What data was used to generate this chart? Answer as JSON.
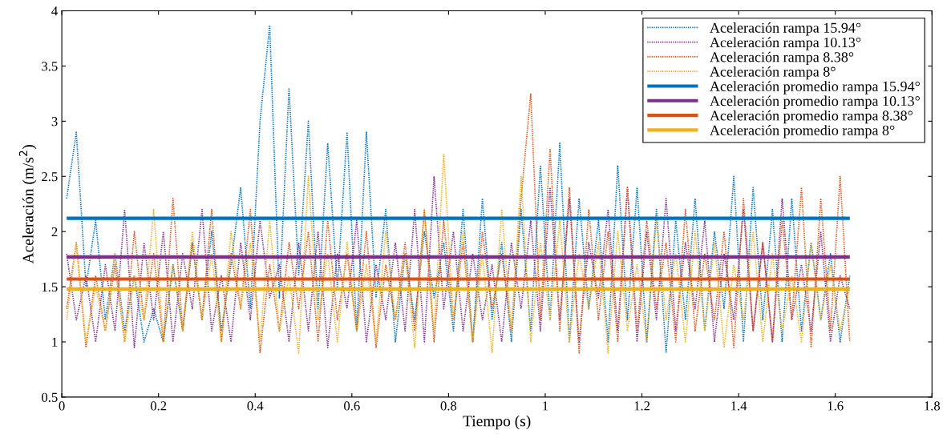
{
  "chart_data": {
    "type": "line",
    "xlabel": "Tiempo (s)",
    "ylabel": "Aceleración (m/s$^{2}$)",
    "x": [
      0.01,
      0.03,
      0.05,
      0.07,
      0.09,
      0.11,
      0.13,
      0.15,
      0.17,
      0.19,
      0.21,
      0.23,
      0.25,
      0.27,
      0.29,
      0.31,
      0.33,
      0.35,
      0.37,
      0.39,
      0.41,
      0.43,
      0.45,
      0.47,
      0.49,
      0.51,
      0.53,
      0.55,
      0.57,
      0.59,
      0.61,
      0.63,
      0.65,
      0.67,
      0.69,
      0.71,
      0.73,
      0.75,
      0.77,
      0.79,
      0.81,
      0.83,
      0.85,
      0.87,
      0.89,
      0.91,
      0.93,
      0.95,
      0.97,
      0.99,
      1.01,
      1.03,
      1.05,
      1.07,
      1.09,
      1.11,
      1.13,
      1.15,
      1.17,
      1.19,
      1.21,
      1.23,
      1.25,
      1.27,
      1.29,
      1.31,
      1.33,
      1.35,
      1.37,
      1.39,
      1.41,
      1.43,
      1.45,
      1.47,
      1.49,
      1.51,
      1.53,
      1.55,
      1.57,
      1.59,
      1.61,
      1.63
    ],
    "xlim": [
      0,
      1.8
    ],
    "xticks": [
      0,
      0.2,
      0.4,
      0.6,
      0.8,
      1,
      1.2,
      1.4,
      1.6,
      1.8
    ],
    "ylim": [
      0.5,
      4
    ],
    "yticks": [
      0.5,
      1,
      1.5,
      2,
      2.5,
      3,
      3.5,
      4
    ],
    "grid": false,
    "legend": "top right",
    "series": [
      {
        "name": "Aceleración rampa 15.94°",
        "color": "#0072bd",
        "line_style": "dotted",
        "values": [
          2.3,
          2.9,
          1.5,
          2.1,
          1.2,
          1.8,
          1.1,
          1.6,
          1.0,
          1.3,
          1.0,
          1.7,
          1.1,
          1.9,
          1.2,
          2.0,
          1.1,
          1.7,
          2.4,
          1.3,
          3.0,
          3.87,
          1.4,
          3.3,
          1.6,
          3.0,
          1.3,
          2.8,
          1.5,
          2.9,
          1.1,
          2.9,
          1.4,
          2.2,
          1.0,
          1.8,
          1.2,
          2.0,
          1.4,
          1.9,
          1.1,
          2.2,
          1.0,
          2.3,
          1.2,
          1.9,
          1.0,
          2.2,
          1.1,
          2.6,
          1.2,
          2.8,
          1.0,
          2.3,
          1.3,
          2.1,
          1.0,
          2.6,
          1.2,
          2.4,
          1.0,
          2.2,
          0.9,
          2.1,
          1.2,
          2.3,
          1.1,
          2.0,
          1.3,
          2.5,
          1.0,
          2.4,
          1.2,
          2.2,
          1.0,
          2.3,
          1.1,
          1.9,
          1.2,
          1.8,
          1.0,
          1.6
        ]
      },
      {
        "name": "Aceleración rampa 10.13°",
        "color": "#7e2f8e",
        "line_style": "dotted",
        "values": [
          1.8,
          1.2,
          1.6,
          1.0,
          1.7,
          1.1,
          2.2,
          0.95,
          1.9,
          1.2,
          2.0,
          1.0,
          1.8,
          1.3,
          2.2,
          1.1,
          1.6,
          1.0,
          1.9,
          1.2,
          2.1,
          1.4,
          1.7,
          1.0,
          1.9,
          1.1,
          2.0,
          0.95,
          1.8,
          1.3,
          2.1,
          1.0,
          1.7,
          1.2,
          1.9,
          1.1,
          2.2,
          1.0,
          2.5,
          1.3,
          2.0,
          1.1,
          1.8,
          1.2,
          1.7,
          1.0,
          1.9,
          1.3,
          2.1,
          1.1,
          2.4,
          1.2,
          2.3,
          1.0,
          1.9,
          1.4,
          2.2,
          1.1,
          2.4,
          1.0,
          2.0,
          1.2,
          2.3,
          1.1,
          1.9,
          1.3,
          2.1,
          1.0,
          1.8,
          1.2,
          2.2,
          1.1,
          1.9,
          1.0,
          2.3,
          1.2,
          1.7,
          1.1,
          2.0,
          1.0,
          1.6,
          1.3
        ]
      },
      {
        "name": "Aceleración rampa 8.38°",
        "color": "#d95319",
        "line_style": "dotted",
        "values": [
          1.3,
          1.9,
          0.95,
          1.6,
          1.1,
          1.7,
          1.0,
          2.0,
          1.2,
          1.8,
          1.0,
          2.3,
          1.1,
          1.9,
          1.2,
          2.2,
          1.0,
          1.8,
          1.3,
          2.2,
          0.9,
          1.7,
          1.1,
          1.9,
          1.3,
          2.0,
          1.0,
          2.1,
          1.2,
          1.8,
          1.1,
          2.0,
          0.95,
          1.7,
          1.2,
          1.9,
          1.1,
          2.2,
          1.0,
          2.1,
          1.2,
          1.9,
          1.0,
          2.0,
          1.3,
          1.8,
          1.1,
          2.3,
          3.25,
          1.2,
          2.75,
          1.1,
          2.4,
          0.9,
          2.2,
          1.2,
          2.0,
          1.0,
          2.4,
          1.1,
          2.1,
          1.3,
          1.9,
          1.0,
          2.2,
          1.1,
          1.8,
          1.2,
          2.0,
          0.95,
          2.3,
          1.1,
          1.9,
          1.0,
          2.1,
          1.2,
          2.4,
          0.95,
          2.3,
          1.1,
          2.5,
          1.0
        ]
      },
      {
        "name": "Aceleración rampa 8°",
        "color": "#edb120",
        "line_style": "dotted",
        "values": [
          1.2,
          1.9,
          1.0,
          1.5,
          1.1,
          1.8,
          1.0,
          1.6,
          1.2,
          2.2,
          1.0,
          1.7,
          1.1,
          2.0,
          1.2,
          1.8,
          1.0,
          2.0,
          1.3,
          1.9,
          1.0,
          2.1,
          1.1,
          1.6,
          0.9,
          2.5,
          1.2,
          1.8,
          1.0,
          1.9,
          1.1,
          1.7,
          1.0,
          2.0,
          1.2,
          1.8,
          0.95,
          2.2,
          1.1,
          2.7,
          1.2,
          2.0,
          1.0,
          1.8,
          0.9,
          2.2,
          1.1,
          2.5,
          1.0,
          1.9,
          1.2,
          2.1,
          1.0,
          1.8,
          1.3,
          1.9,
          0.9,
          2.0,
          1.1,
          1.7,
          1.0,
          2.1,
          1.2,
          1.8,
          1.0,
          2.0,
          1.1,
          1.9,
          0.95,
          1.7,
          1.2,
          2.0,
          1.0,
          1.8,
          1.1,
          1.6,
          1.0,
          1.9,
          1.2,
          1.7,
          1.1,
          1.5
        ]
      },
      {
        "name": "Aceleración promedio rampa 15.94°",
        "color": "#0072bd",
        "line_style": "solid",
        "values": [
          2.12,
          2.12,
          2.12,
          2.12,
          2.12,
          2.12,
          2.12,
          2.12,
          2.12,
          2.12,
          2.12,
          2.12,
          2.12,
          2.12,
          2.12,
          2.12,
          2.12,
          2.12,
          2.12,
          2.12,
          2.12,
          2.12,
          2.12,
          2.12,
          2.12,
          2.12,
          2.12,
          2.12,
          2.12,
          2.12,
          2.12,
          2.12,
          2.12,
          2.12,
          2.12,
          2.12,
          2.12,
          2.12,
          2.12,
          2.12,
          2.12,
          2.12,
          2.12,
          2.12,
          2.12,
          2.12,
          2.12,
          2.12,
          2.12,
          2.12,
          2.12,
          2.12,
          2.12,
          2.12,
          2.12,
          2.12,
          2.12,
          2.12,
          2.12,
          2.12,
          2.12,
          2.12,
          2.12,
          2.12,
          2.12,
          2.12,
          2.12,
          2.12,
          2.12,
          2.12,
          2.12,
          2.12,
          2.12,
          2.12,
          2.12,
          2.12,
          2.12,
          2.12,
          2.12,
          2.12,
          2.12,
          2.12
        ]
      },
      {
        "name": "Aceleración promedio rampa 10.13°",
        "color": "#7e2f8e",
        "line_style": "solid",
        "values": [
          1.77,
          1.77,
          1.77,
          1.77,
          1.77,
          1.77,
          1.77,
          1.77,
          1.77,
          1.77,
          1.77,
          1.77,
          1.77,
          1.77,
          1.77,
          1.77,
          1.77,
          1.77,
          1.77,
          1.77,
          1.77,
          1.77,
          1.77,
          1.77,
          1.77,
          1.77,
          1.77,
          1.77,
          1.77,
          1.77,
          1.77,
          1.77,
          1.77,
          1.77,
          1.77,
          1.77,
          1.77,
          1.77,
          1.77,
          1.77,
          1.77,
          1.77,
          1.77,
          1.77,
          1.77,
          1.77,
          1.77,
          1.77,
          1.77,
          1.77,
          1.77,
          1.77,
          1.77,
          1.77,
          1.77,
          1.77,
          1.77,
          1.77,
          1.77,
          1.77,
          1.77,
          1.77,
          1.77,
          1.77,
          1.77,
          1.77,
          1.77,
          1.77,
          1.77,
          1.77,
          1.77,
          1.77,
          1.77,
          1.77,
          1.77,
          1.77,
          1.77,
          1.77,
          1.77,
          1.77,
          1.77,
          1.77
        ]
      },
      {
        "name": "Aceleración promedio rampa 8.38°",
        "color": "#d95319",
        "line_style": "solid",
        "values": [
          1.57,
          1.57,
          1.57,
          1.57,
          1.57,
          1.57,
          1.57,
          1.57,
          1.57,
          1.57,
          1.57,
          1.57,
          1.57,
          1.57,
          1.57,
          1.57,
          1.57,
          1.57,
          1.57,
          1.57,
          1.57,
          1.57,
          1.57,
          1.57,
          1.57,
          1.57,
          1.57,
          1.57,
          1.57,
          1.57,
          1.57,
          1.57,
          1.57,
          1.57,
          1.57,
          1.57,
          1.57,
          1.57,
          1.57,
          1.57,
          1.57,
          1.57,
          1.57,
          1.57,
          1.57,
          1.57,
          1.57,
          1.57,
          1.57,
          1.57,
          1.57,
          1.57,
          1.57,
          1.57,
          1.57,
          1.57,
          1.57,
          1.57,
          1.57,
          1.57,
          1.57,
          1.57,
          1.57,
          1.57,
          1.57,
          1.57,
          1.57,
          1.57,
          1.57,
          1.57,
          1.57,
          1.57,
          1.57,
          1.57,
          1.57,
          1.57,
          1.57,
          1.57,
          1.57,
          1.57,
          1.57,
          1.57
        ]
      },
      {
        "name": "Aceleración promedio rampa 8°",
        "color": "#edb120",
        "line_style": "solid",
        "values": [
          1.48,
          1.48,
          1.48,
          1.48,
          1.48,
          1.48,
          1.48,
          1.48,
          1.48,
          1.48,
          1.48,
          1.48,
          1.48,
          1.48,
          1.48,
          1.48,
          1.48,
          1.48,
          1.48,
          1.48,
          1.48,
          1.48,
          1.48,
          1.48,
          1.48,
          1.48,
          1.48,
          1.48,
          1.48,
          1.48,
          1.48,
          1.48,
          1.48,
          1.48,
          1.48,
          1.48,
          1.48,
          1.48,
          1.48,
          1.48,
          1.48,
          1.48,
          1.48,
          1.48,
          1.48,
          1.48,
          1.48,
          1.48,
          1.48,
          1.48,
          1.48,
          1.48,
          1.48,
          1.48,
          1.48,
          1.48,
          1.48,
          1.48,
          1.48,
          1.48,
          1.48,
          1.48,
          1.48,
          1.48,
          1.48,
          1.48,
          1.48,
          1.48,
          1.48,
          1.48,
          1.48,
          1.48,
          1.48,
          1.48,
          1.48,
          1.48,
          1.48,
          1.48,
          1.48,
          1.48,
          1.48,
          1.48
        ]
      }
    ]
  }
}
